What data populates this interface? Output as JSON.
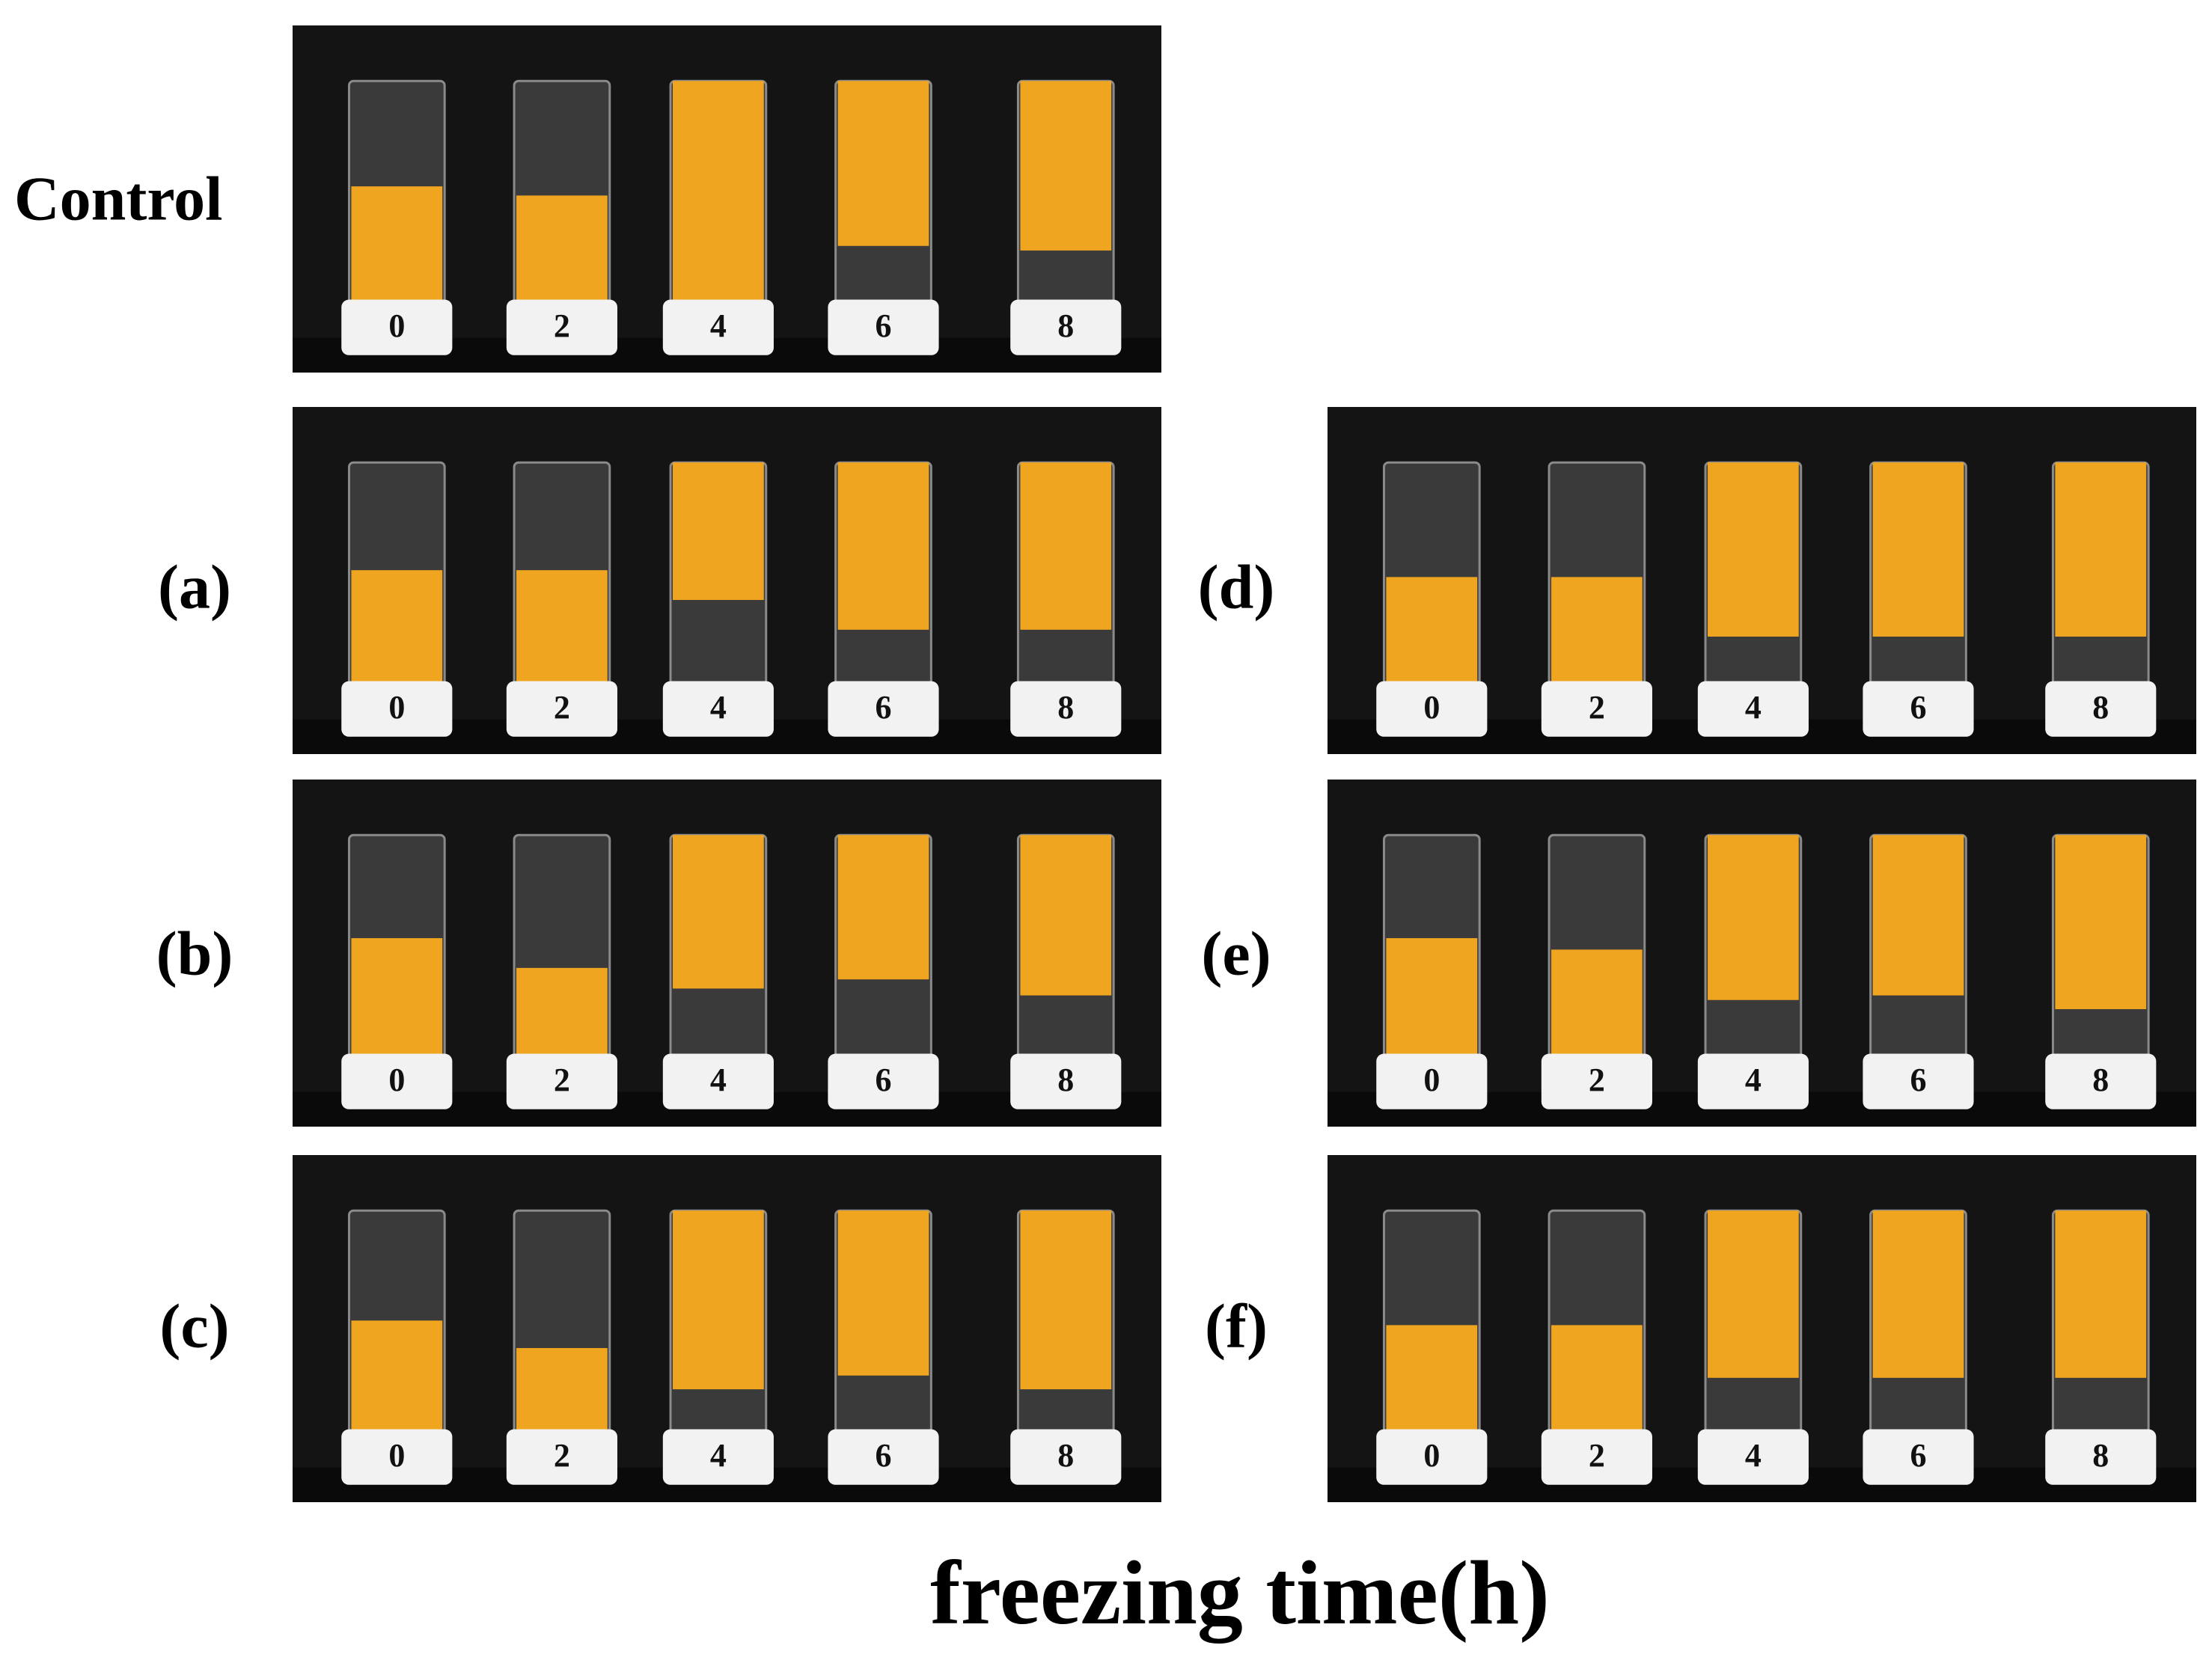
{
  "panels": [
    {
      "label": "Control",
      "tubes": [
        0,
        2,
        4,
        6,
        8
      ]
    },
    {
      "label": "(a)",
      "tubes": [
        0,
        2,
        4,
        6,
        8
      ]
    },
    {
      "label": "(b)",
      "tubes": [
        0,
        2,
        4,
        6,
        8
      ]
    },
    {
      "label": "(c)",
      "tubes": [
        0,
        2,
        4,
        6,
        8
      ]
    },
    {
      "label": "(d)",
      "tubes": [
        0,
        2,
        4,
        6,
        8
      ]
    },
    {
      "label": "(e)",
      "tubes": [
        0,
        2,
        4,
        6,
        8
      ]
    },
    {
      "label": "(f)",
      "tubes": [
        0,
        2,
        4,
        6,
        8
      ]
    }
  ],
  "xlabel": "freezing time(h)"
}
